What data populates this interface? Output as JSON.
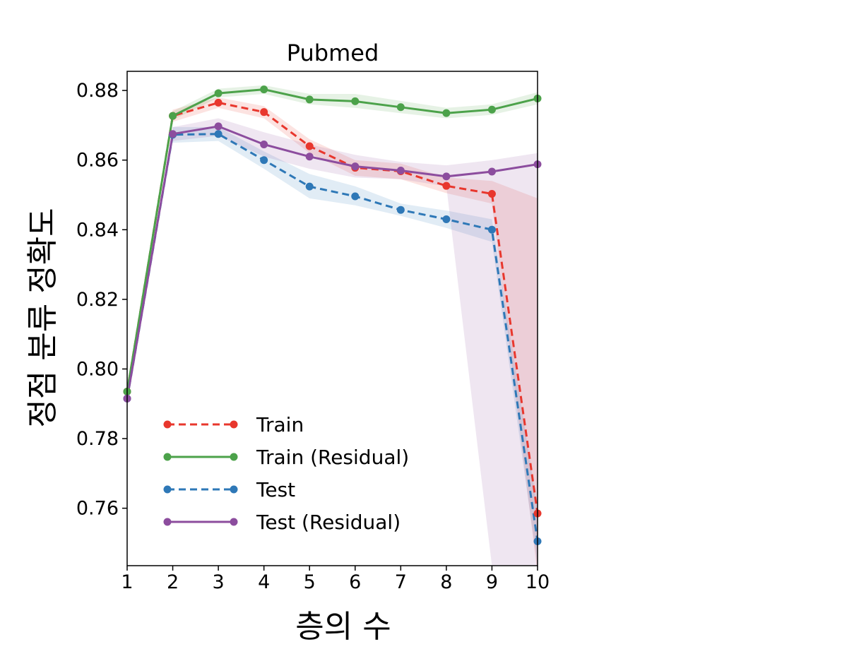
{
  "chart_data": {
    "type": "line",
    "title": "Pubmed",
    "xlabel": "층의 수",
    "ylabel": "정점 분류 정확도",
    "x": [
      1,
      2,
      3,
      4,
      5,
      6,
      7,
      8,
      9,
      10
    ],
    "xticks": [
      "1",
      "2",
      "3",
      "4",
      "5",
      "6",
      "7",
      "8",
      "9",
      "10"
    ],
    "yticks": [
      "0.76",
      "0.78",
      "0.80",
      "0.82",
      "0.84",
      "0.86",
      "0.88"
    ],
    "xlim": [
      1,
      10
    ],
    "ylim": [
      0.7435,
      0.8855
    ],
    "grid": false,
    "legend_position": "bottom-left",
    "series": [
      {
        "name": "Train",
        "color": "#e8372d",
        "style": "dashed",
        "values": [
          0.7935,
          0.8727,
          0.8765,
          0.8738,
          0.864,
          0.8578,
          0.8568,
          0.8526,
          0.8503,
          0.7585
        ],
        "band_lower": [
          0.793,
          0.871,
          0.875,
          0.872,
          0.862,
          0.8555,
          0.8545,
          0.8505,
          0.8475,
          0.741
        ],
        "band_upper": [
          0.794,
          0.8745,
          0.878,
          0.8755,
          0.866,
          0.86,
          0.859,
          0.855,
          0.854,
          0.849
        ]
      },
      {
        "name": "Train (Residual)",
        "color": "#4ca24a",
        "style": "solid",
        "values": [
          0.7935,
          0.8727,
          0.8792,
          0.8803,
          0.8774,
          0.8769,
          0.8752,
          0.8735,
          0.8745,
          0.8777
        ],
        "band_lower": [
          0.793,
          0.8715,
          0.878,
          0.879,
          0.876,
          0.875,
          0.8735,
          0.872,
          0.873,
          0.876
        ],
        "band_upper": [
          0.794,
          0.874,
          0.8805,
          0.8815,
          0.879,
          0.879,
          0.877,
          0.875,
          0.876,
          0.8795
        ]
      },
      {
        "name": "Test",
        "color": "#2e78b7",
        "style": "dashed",
        "values": [
          0.7915,
          0.8673,
          0.8675,
          0.86,
          0.8524,
          0.8496,
          0.8457,
          0.843,
          0.84,
          0.7505
        ],
        "band_lower": [
          0.791,
          0.865,
          0.8655,
          0.8575,
          0.849,
          0.847,
          0.844,
          0.8405,
          0.8365,
          0.7435
        ],
        "band_upper": [
          0.792,
          0.8695,
          0.8695,
          0.8625,
          0.856,
          0.8525,
          0.8475,
          0.8455,
          0.843,
          0.76
        ]
      },
      {
        "name": "Test (Residual)",
        "color": "#8c4d9e",
        "style": "solid",
        "values": [
          0.7915,
          0.8675,
          0.8697,
          0.8645,
          0.861,
          0.8582,
          0.857,
          0.8553,
          0.8567,
          0.8588
        ],
        "band_lower": [
          0.791,
          0.8655,
          0.867,
          0.861,
          0.8575,
          0.855,
          0.8545,
          0.8525,
          0.7435,
          0.7435
        ],
        "band_upper": [
          0.792,
          0.8695,
          0.872,
          0.868,
          0.8645,
          0.8615,
          0.8595,
          0.8585,
          0.86,
          0.862
        ]
      }
    ]
  }
}
